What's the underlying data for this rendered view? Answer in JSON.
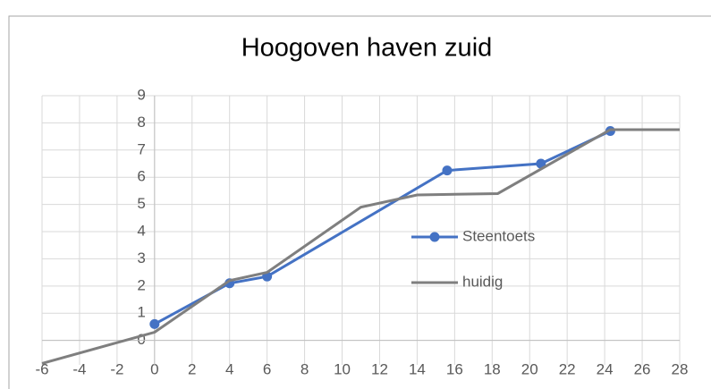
{
  "chart_data": {
    "type": "line",
    "title": "Hoogoven haven zuid",
    "xlim": [
      -6,
      28
    ],
    "xticks": [
      -6,
      -4,
      -2,
      0,
      2,
      4,
      6,
      8,
      10,
      12,
      14,
      16,
      18,
      20,
      22,
      24,
      26,
      28
    ],
    "ylim": [
      -0.9,
      9
    ],
    "yticks": [
      0,
      1,
      2,
      3,
      4,
      5,
      6,
      7,
      8,
      9
    ],
    "grid": true,
    "series": [
      {
        "name": "Steentoets",
        "color": "#4472c4",
        "markers": true,
        "x": [
          0,
          4,
          6,
          15.6,
          20.6,
          24.3
        ],
        "values": [
          0.6,
          2.1,
          2.35,
          6.25,
          6.5,
          7.7
        ]
      },
      {
        "name": "huidig",
        "color": "#7f7f7f",
        "markers": false,
        "x": [
          -6,
          0,
          4,
          6,
          11,
          14,
          18.3,
          24.3,
          28
        ],
        "values": [
          -0.85,
          0.3,
          2.2,
          2.5,
          4.9,
          5.35,
          5.4,
          7.75,
          7.75
        ]
      }
    ]
  }
}
